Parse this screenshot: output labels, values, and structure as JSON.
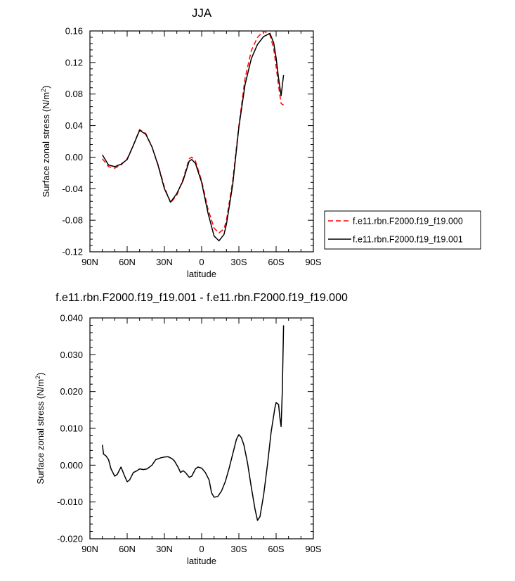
{
  "chart_data": [
    {
      "type": "line",
      "title": "JJA",
      "xlabel": "latitude",
      "ylabel": "Surface zonal stress (N/m²)",
      "ylabel_parts": {
        "base": "Surface zonal stress (N/m",
        "sup": "2",
        "end": ")"
      },
      "x_ticks": [
        -90,
        -60,
        -30,
        0,
        30,
        60,
        90
      ],
      "x_tick_labels": [
        "90N",
        "60N",
        "30N",
        "0",
        "30S",
        "60S",
        "90S"
      ],
      "xlim": [
        -90,
        90
      ],
      "ylim": [
        -0.12,
        0.16
      ],
      "y_ticks": [
        -0.12,
        -0.08,
        -0.04,
        0.0,
        0.04,
        0.08,
        0.12,
        0.16
      ],
      "y_tick_labels": [
        "-0.12",
        "-0.08",
        "-0.04",
        "0.00",
        "0.04",
        "0.08",
        "0.12",
        "0.16"
      ],
      "grid": false,
      "legend_position": "right",
      "series": [
        {
          "name": "f.e11.rbn.F2000.f19_f19.000",
          "color": "#ff0000",
          "dash": "dashed",
          "x": [
            -80,
            -75,
            -70,
            -65,
            -60,
            -55,
            -50,
            -45,
            -40,
            -35,
            -30,
            -25,
            -20,
            -15,
            -10,
            -8,
            -5,
            0,
            5,
            10,
            14,
            18,
            20,
            25,
            30,
            35,
            40,
            45,
            50,
            55,
            58,
            60,
            62,
            64,
            66
          ],
          "y": [
            -0.002,
            -0.012,
            -0.014,
            -0.01,
            -0.002,
            0.015,
            0.035,
            0.03,
            0.013,
            -0.01,
            -0.038,
            -0.058,
            -0.048,
            -0.028,
            -0.002,
            0.0,
            -0.005,
            -0.03,
            -0.065,
            -0.09,
            -0.096,
            -0.091,
            -0.08,
            -0.03,
            0.04,
            0.1,
            0.135,
            0.152,
            0.16,
            0.155,
            0.138,
            0.115,
            0.09,
            0.068,
            0.066
          ]
        },
        {
          "name": "f.e11.rbn.F2000.f19_f19.001",
          "color": "#000000",
          "dash": "solid",
          "x": [
            -80,
            -75,
            -70,
            -65,
            -60,
            -55,
            -50,
            -45,
            -40,
            -35,
            -30,
            -25,
            -20,
            -15,
            -10,
            -8,
            -5,
            0,
            5,
            10,
            14,
            18,
            20,
            25,
            30,
            35,
            40,
            45,
            50,
            55,
            58,
            60,
            62,
            64,
            66
          ],
          "y": [
            0.003,
            -0.01,
            -0.012,
            -0.009,
            -0.003,
            0.015,
            0.034,
            0.029,
            0.013,
            -0.011,
            -0.04,
            -0.057,
            -0.046,
            -0.03,
            -0.005,
            -0.003,
            -0.008,
            -0.032,
            -0.07,
            -0.1,
            -0.106,
            -0.098,
            -0.085,
            -0.035,
            0.038,
            0.092,
            0.125,
            0.143,
            0.153,
            0.157,
            0.145,
            0.126,
            0.1,
            0.078,
            0.104
          ]
        }
      ]
    },
    {
      "type": "line",
      "title": "f.e11.rbn.F2000.f19_f19.001 - f.e11.rbn.F2000.f19_f19.000",
      "xlabel": "latitude",
      "ylabel": "Surface zonal stress (N/m²)",
      "ylabel_parts": {
        "base": "Surface zonal stress (N/m",
        "sup": "2",
        "end": ")"
      },
      "x_ticks": [
        -90,
        -60,
        -30,
        0,
        30,
        60,
        90
      ],
      "x_tick_labels": [
        "90N",
        "60N",
        "30N",
        "0",
        "30S",
        "60S",
        "90S"
      ],
      "xlim": [
        -90,
        90
      ],
      "ylim": [
        -0.02,
        0.04
      ],
      "y_ticks": [
        -0.02,
        -0.01,
        0.0,
        0.01,
        0.02,
        0.03,
        0.04
      ],
      "y_tick_labels": [
        "-0.020",
        "-0.010",
        "0.000",
        "0.010",
        "0.020",
        "0.030",
        "0.040"
      ],
      "grid": false,
      "series": [
        {
          "color": "#000000",
          "dash": "solid",
          "x": [
            -80,
            -79,
            -77,
            -75,
            -73,
            -70,
            -68,
            -65,
            -62,
            -60,
            -58,
            -55,
            -52,
            -50,
            -47,
            -44,
            -40,
            -37,
            -33,
            -30,
            -27,
            -24,
            -22,
            -19,
            -17,
            -15,
            -13,
            -10,
            -8,
            -5,
            -3,
            0,
            3,
            6,
            8,
            10,
            13,
            16,
            19,
            22,
            25,
            28,
            30,
            32,
            34,
            37,
            40,
            43,
            45,
            47,
            50,
            53,
            56,
            59,
            60,
            62,
            63,
            64,
            65,
            66
          ],
          "y": [
            0.0055,
            0.003,
            0.0025,
            0.0015,
            -0.001,
            -0.003,
            -0.0025,
            -0.0005,
            -0.003,
            -0.0045,
            -0.004,
            -0.002,
            -0.0015,
            -0.001,
            -0.0012,
            -0.001,
            0.0,
            0.0015,
            0.002,
            0.0022,
            0.0023,
            0.0018,
            0.0012,
            -0.0005,
            -0.002,
            -0.0015,
            -0.002,
            -0.0033,
            -0.003,
            -0.001,
            -0.0005,
            -0.0008,
            -0.002,
            -0.004,
            -0.0075,
            -0.0087,
            -0.0085,
            -0.007,
            -0.0045,
            -0.001,
            0.003,
            0.007,
            0.0083,
            0.0075,
            0.0055,
            0.0005,
            -0.006,
            -0.012,
            -0.015,
            -0.014,
            -0.008,
            0.0,
            0.009,
            0.0155,
            0.017,
            0.0165,
            0.013,
            0.0105,
            0.02,
            0.038
          ]
        }
      ]
    }
  ]
}
